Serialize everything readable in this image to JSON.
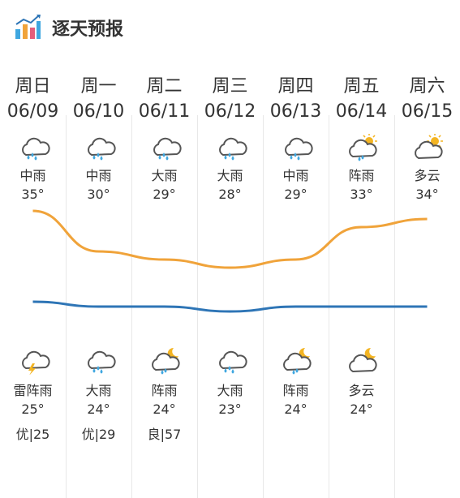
{
  "header": {
    "title": "逐天预报"
  },
  "days": [
    {
      "weekday": "周日",
      "date": "06/09",
      "day_icon": "rain-cloud-icon",
      "day_cond": "中雨",
      "day_high": "35°",
      "night_icon": "thunder-shower-icon",
      "night_cond": "雷阵雨",
      "night_low": "25°",
      "aqi": "优|25"
    },
    {
      "weekday": "周一",
      "date": "06/10",
      "day_icon": "rain-cloud-icon",
      "day_cond": "中雨",
      "day_high": "30°",
      "night_icon": "rain-cloud-icon",
      "night_cond": "大雨",
      "night_low": "24°",
      "aqi": "优|29"
    },
    {
      "weekday": "周二",
      "date": "06/11",
      "day_icon": "rain-cloud-icon",
      "day_cond": "大雨",
      "day_high": "29°",
      "night_icon": "moon-shower-icon",
      "night_cond": "阵雨",
      "night_low": "24°",
      "aqi": "良|57"
    },
    {
      "weekday": "周三",
      "date": "06/12",
      "day_icon": "rain-cloud-icon",
      "day_cond": "大雨",
      "day_high": "28°",
      "night_icon": "rain-cloud-icon",
      "night_cond": "大雨",
      "night_low": "23°",
      "aqi": ""
    },
    {
      "weekday": "周四",
      "date": "06/13",
      "day_icon": "rain-cloud-icon",
      "day_cond": "中雨",
      "day_high": "29°",
      "night_icon": "moon-shower-icon",
      "night_cond": "阵雨",
      "night_low": "24°",
      "aqi": ""
    },
    {
      "weekday": "周五",
      "date": "06/14",
      "day_icon": "sun-shower-icon",
      "day_cond": "阵雨",
      "day_high": "33°",
      "night_icon": "moon-cloud-icon",
      "night_cond": "多云",
      "night_low": "24°",
      "aqi": ""
    },
    {
      "weekday": "周六",
      "date": "06/15",
      "day_icon": "sun-cloud-icon",
      "day_cond": "多云",
      "day_high": "34°",
      "night_icon": "",
      "night_cond": "",
      "night_low": "",
      "aqi": ""
    }
  ],
  "curve_colors": {
    "high": "#f0a33a",
    "low": "#2e75b6"
  },
  "icon_colors": {
    "cloud": "#555555",
    "rain": "#3fa7e0",
    "sun": "#f3b422",
    "bolt": "#f3b422"
  },
  "high_temps": [
    35,
    30,
    29,
    28,
    29,
    33,
    34
  ],
  "low_temps": [
    25,
    24,
    24,
    23,
    24,
    24,
    24
  ]
}
